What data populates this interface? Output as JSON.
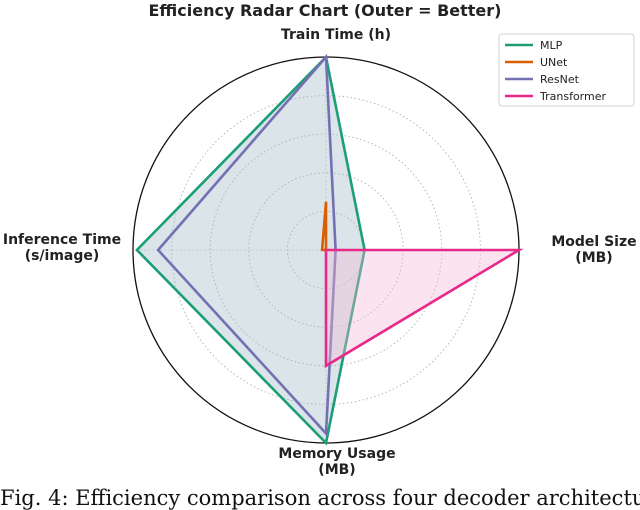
{
  "chart_data": {
    "type": "radar",
    "title": "Efficiency Radar Chart (Outer = Better)",
    "axes": [
      {
        "name": "Train Time (h)",
        "label_lines": [
          "Train Time (h)"
        ]
      },
      {
        "name": "Model Size (MB)",
        "label_lines": [
          "Model Size",
          "(MB)"
        ]
      },
      {
        "name": "Memory Usage (MB)",
        "label_lines": [
          "Memory Usage",
          "(MB)"
        ]
      },
      {
        "name": "Inference Time (s/image)",
        "label_lines": [
          "Inference Time",
          "(s/image)"
        ]
      }
    ],
    "range": [
      0,
      1
    ],
    "grid": "dotted circles",
    "legend_position": "top-right",
    "series": [
      {
        "name": "MLP",
        "color": "#1b9e77",
        "values": [
          1.0,
          0.2,
          1.0,
          0.98
        ],
        "filled": true
      },
      {
        "name": "UNet",
        "color": "#d95f02",
        "values": [
          0.25,
          0.0,
          0.0,
          0.02
        ],
        "filled": false
      },
      {
        "name": "ResNet",
        "color": "#7570b3",
        "values": [
          1.0,
          0.05,
          0.95,
          0.87
        ],
        "filled": false
      },
      {
        "name": "Transformer",
        "color": "#e7298a",
        "values": [
          0.0,
          1.0,
          0.6,
          0.0
        ],
        "filled": true
      }
    ]
  },
  "caption": "Fig. 4: Efficiency comparison across four decoder architectures"
}
